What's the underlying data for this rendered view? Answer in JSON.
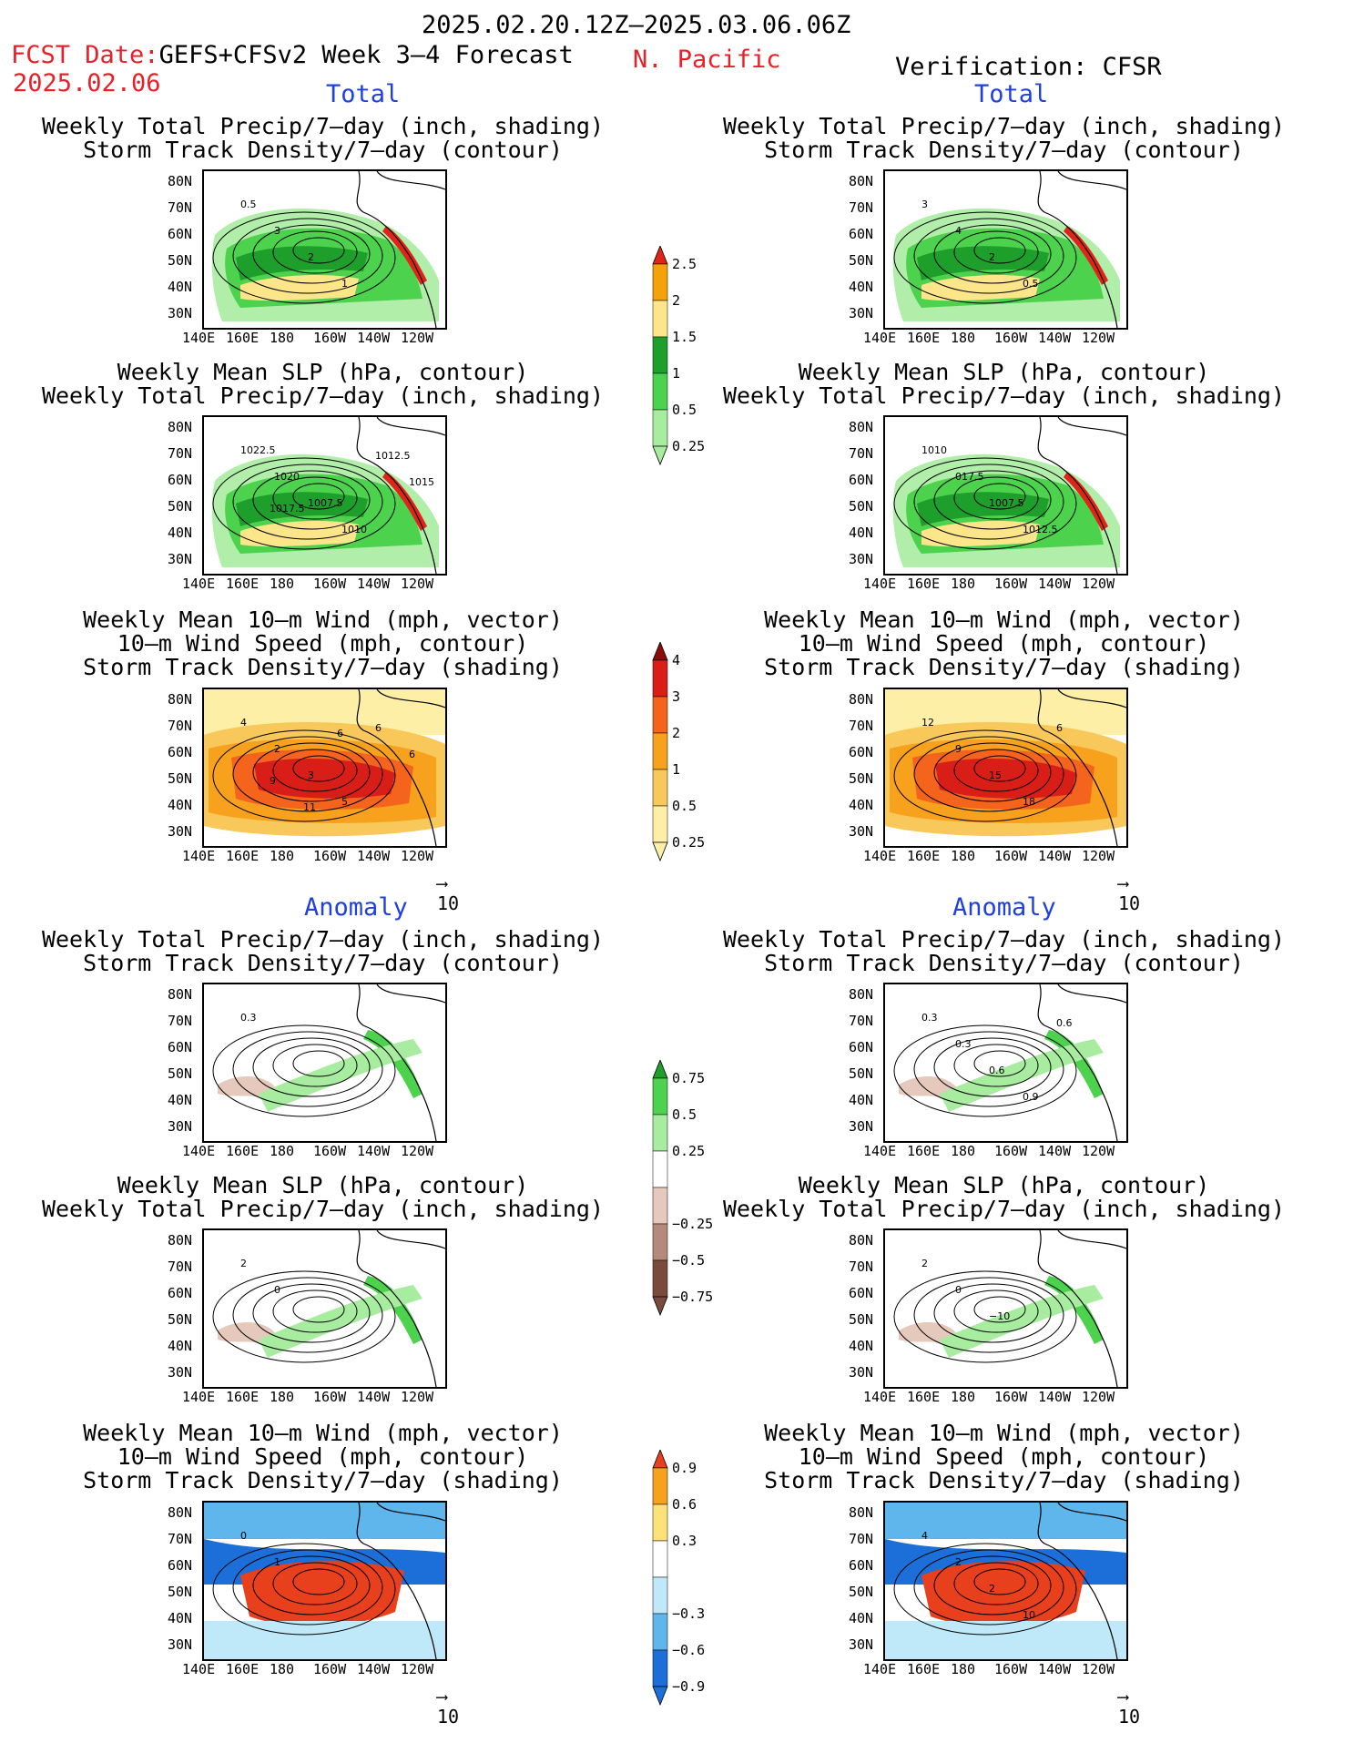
{
  "header": {
    "period": "2025.02.20.12Z–2025.03.06.06Z",
    "fcst_label": "FCST Date:",
    "fcst_date": "2025.02.06",
    "model": "GEFS+CFSv2 Week 3–4 Forecast",
    "region": "N. Pacific",
    "verification": "Verification: CFSR",
    "total_left": "Total",
    "total_right": "Total",
    "anomaly_left": "Anomaly",
    "anomaly_right": "Anomaly"
  },
  "axes": {
    "lat_ticks": [
      "80N",
      "70N",
      "60N",
      "50N",
      "40N",
      "30N"
    ],
    "lon_ticks": [
      "140E",
      "160E",
      "180",
      "160W",
      "140W",
      "120W"
    ]
  },
  "panels": [
    {
      "id": "tl1",
      "lines": [
        "Weekly Total Precip/7–day (inch, shading)",
        "Storm Track Density/7–day (contour)"
      ],
      "labels": [
        "0.5",
        "3",
        "2",
        "1"
      ]
    },
    {
      "id": "tr1",
      "lines": [
        "Weekly Total Precip/7–day (inch, shading)",
        "Storm Track Density/7–day (contour)"
      ],
      "labels": [
        "3",
        "4",
        "2",
        "0.5"
      ]
    },
    {
      "id": "tl2",
      "lines": [
        "Weekly Mean SLP (hPa, contour)",
        "Weekly Total Precip/7–day (inch, shading)"
      ],
      "labels": [
        "1022.5",
        "1020",
        "1007.5",
        "1010",
        "1012.5",
        "1015",
        "1017.5"
      ]
    },
    {
      "id": "tr2",
      "lines": [
        "Weekly Mean SLP (hPa, contour)",
        "Weekly Total Precip/7–day (inch, shading)"
      ],
      "labels": [
        "1010",
        "017.5",
        "1007.5",
        "1012.5"
      ]
    },
    {
      "id": "tl3",
      "lines": [
        "Weekly Mean 10–m Wind (mph, vector)",
        "10–m Wind Speed (mph, contour)",
        "Storm Track Density/7–day (shading)"
      ],
      "labels": [
        "4",
        "2",
        "3",
        "5",
        "6",
        "6",
        "9",
        "11",
        "6"
      ]
    },
    {
      "id": "tr3",
      "lines": [
        "Weekly Mean 10–m Wind (mph, vector)",
        "10–m Wind Speed (mph, contour)",
        "Storm Track Density/7–day (shading)"
      ],
      "labels": [
        "12",
        "9",
        "15",
        "18",
        "6"
      ]
    },
    {
      "id": "al1",
      "lines": [
        "Weekly Total Precip/7–day (inch, shading)",
        "Storm Track Density/7–day (contour)"
      ],
      "labels": [
        "0.3"
      ]
    },
    {
      "id": "ar1",
      "lines": [
        "Weekly Total Precip/7–day (inch, shading)",
        "Storm Track Density/7–day (contour)"
      ],
      "labels": [
        "0.3",
        "0.3",
        "0.6",
        "0.9",
        "0.6"
      ]
    },
    {
      "id": "al2",
      "lines": [
        "Weekly Mean SLP (hPa, contour)",
        "Weekly Total Precip/7–day (inch, shading)"
      ],
      "labels": [
        "2",
        "0"
      ]
    },
    {
      "id": "ar2",
      "lines": [
        "Weekly Mean SLP (hPa, contour)",
        "Weekly Total Precip/7–day (inch, shading)"
      ],
      "labels": [
        "2",
        "0",
        "−10"
      ]
    },
    {
      "id": "al3",
      "lines": [
        "Weekly Mean 10–m Wind (mph, vector)",
        "10–m Wind Speed (mph, contour)",
        "Storm Track Density/7–day (shading)"
      ],
      "labels": [
        "0",
        "1"
      ]
    },
    {
      "id": "ar3",
      "lines": [
        "Weekly Mean 10–m Wind (mph, vector)",
        "10–m Wind Speed (mph, contour)",
        "Storm Track Density/7–day (shading)"
      ],
      "labels": [
        "4",
        "2",
        "2",
        "10"
      ]
    }
  ],
  "vector_ref": "10",
  "colorbars": [
    {
      "id": "cb-precip",
      "labels": [
        "2.5",
        "2",
        "1.5",
        "1",
        "0.5",
        "0.25"
      ],
      "colors": [
        "#e02418",
        "#f5a10a",
        "#fde68a",
        "#1e9e2a",
        "#4cd24c",
        "#a8eca0"
      ]
    },
    {
      "id": "cb-storm",
      "labels": [
        "4",
        "3",
        "2",
        "1",
        "0.5",
        "0.25"
      ],
      "colors": [
        "#8e0b0b",
        "#d91e18",
        "#f4641c",
        "#f7a11c",
        "#f9c85a",
        "#fdf0a6"
      ]
    },
    {
      "id": "cb-precip-anom",
      "labels": [
        "0.75",
        "0.5",
        "0.25",
        "−0.25",
        "−0.5",
        "−0.75"
      ],
      "colors": [
        "#1e9e2a",
        "#4cd24c",
        "#a8eca0",
        "#ffffff",
        "#e6c9bd",
        "#b58a7c",
        "#7a4a3c"
      ]
    },
    {
      "id": "cb-storm-anom",
      "labels": [
        "0.9",
        "0.6",
        "0.3",
        "−0.3",
        "−0.6",
        "−0.9"
      ],
      "colors": [
        "#e8401c",
        "#f7a11c",
        "#fde27a",
        "#ffffff",
        "#bfe8f8",
        "#5fb6ec",
        "#1c6fd8"
      ]
    }
  ],
  "chart_data": {
    "type": "heatmap",
    "title": "2025.02.20.12Z–2025.03.06.06Z",
    "subtitle": "GEFS+CFSv2 Week 3–4 Forecast",
    "region": "N. Pacific",
    "lat_range": [
      "30N",
      "80N"
    ],
    "lon_range": [
      "140E",
      "120W"
    ],
    "precip_total_levels": [
      0.25,
      0.5,
      1,
      1.5,
      2,
      2.5
    ],
    "storm_density_levels": [
      0.25,
      0.5,
      1,
      2,
      3,
      4
    ],
    "precip_anom_levels": [
      -0.75,
      -0.5,
      -0.25,
      0.25,
      0.5,
      0.75
    ],
    "storm_anom_levels": [
      -0.9,
      -0.6,
      -0.3,
      0.3,
      0.6,
      0.9
    ]
  }
}
